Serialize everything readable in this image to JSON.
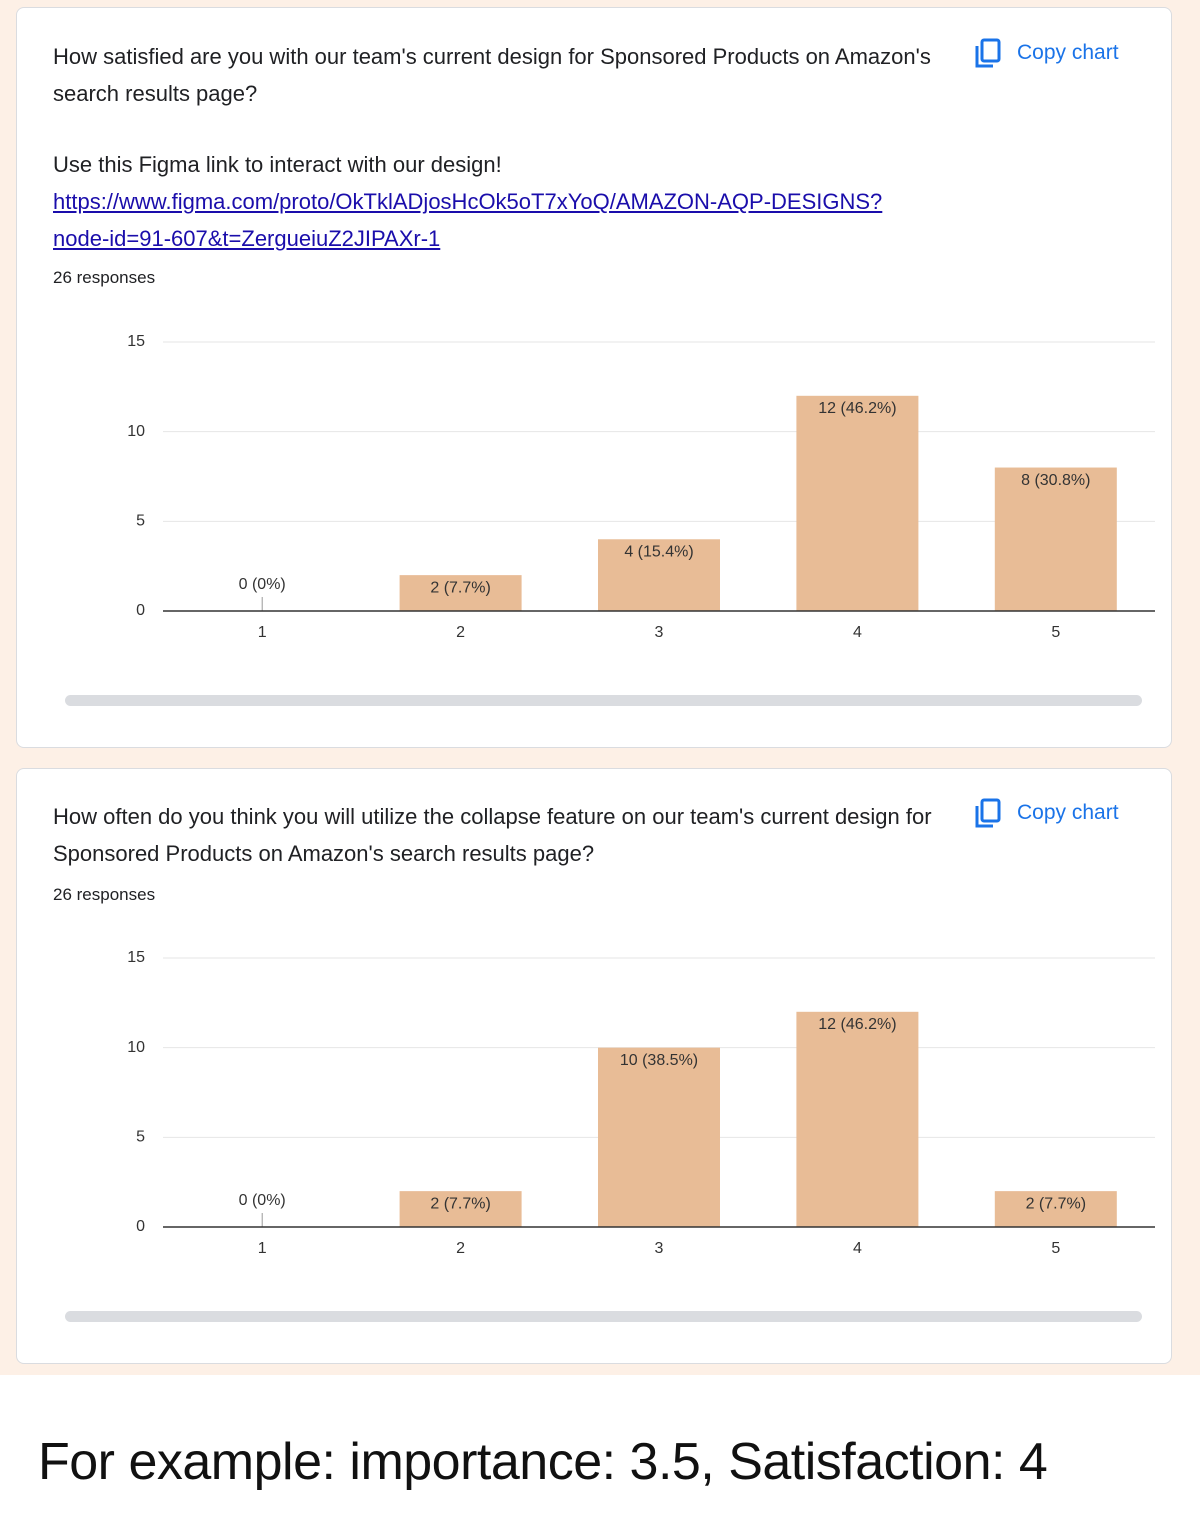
{
  "chart_data": [
    {
      "type": "bar",
      "title": "How satisfied are you with our team's current design for Sponsored Products on Amazon's search results page?",
      "description": "Use this Figma link to interact with our design!",
      "link": "https://www.figma.com/proto/OkTklADjosHcOk5oT7xYoQ/AMAZON-AQP-DESIGNS?node-id=91-607&t=ZergueiuZ2JIPAXr-1",
      "subtitle": "26 responses",
      "button": "Copy chart",
      "categories": [
        "1",
        "2",
        "3",
        "4",
        "5"
      ],
      "values": [
        0,
        2,
        4,
        12,
        8
      ],
      "value_labels": [
        "0 (0%)",
        "2 (7.7%)",
        "4 (15.4%)",
        "12 (46.2%)",
        "8 (30.8%)"
      ],
      "color": "#e8bc96",
      "ylim": [
        0,
        15
      ],
      "yticks": [
        0,
        5,
        10,
        15
      ],
      "grid": true
    },
    {
      "type": "bar",
      "title": "How often do you think you will utilize the collapse feature on our team's current design for Sponsored Products on Amazon's search results page?",
      "subtitle": "26 responses",
      "button": "Copy chart",
      "categories": [
        "1",
        "2",
        "3",
        "4",
        "5"
      ],
      "values": [
        0,
        2,
        10,
        12,
        2
      ],
      "value_labels": [
        "0 (0%)",
        "2 (7.7%)",
        "10 (38.5%)",
        "12 (46.2%)",
        "2 (7.7%)"
      ],
      "color": "#e8bc96",
      "ylim": [
        0,
        15
      ],
      "yticks": [
        0,
        5,
        10,
        15
      ],
      "grid": true
    }
  ],
  "caption": "For example: importance: 3.5, Satisfaction: 4"
}
